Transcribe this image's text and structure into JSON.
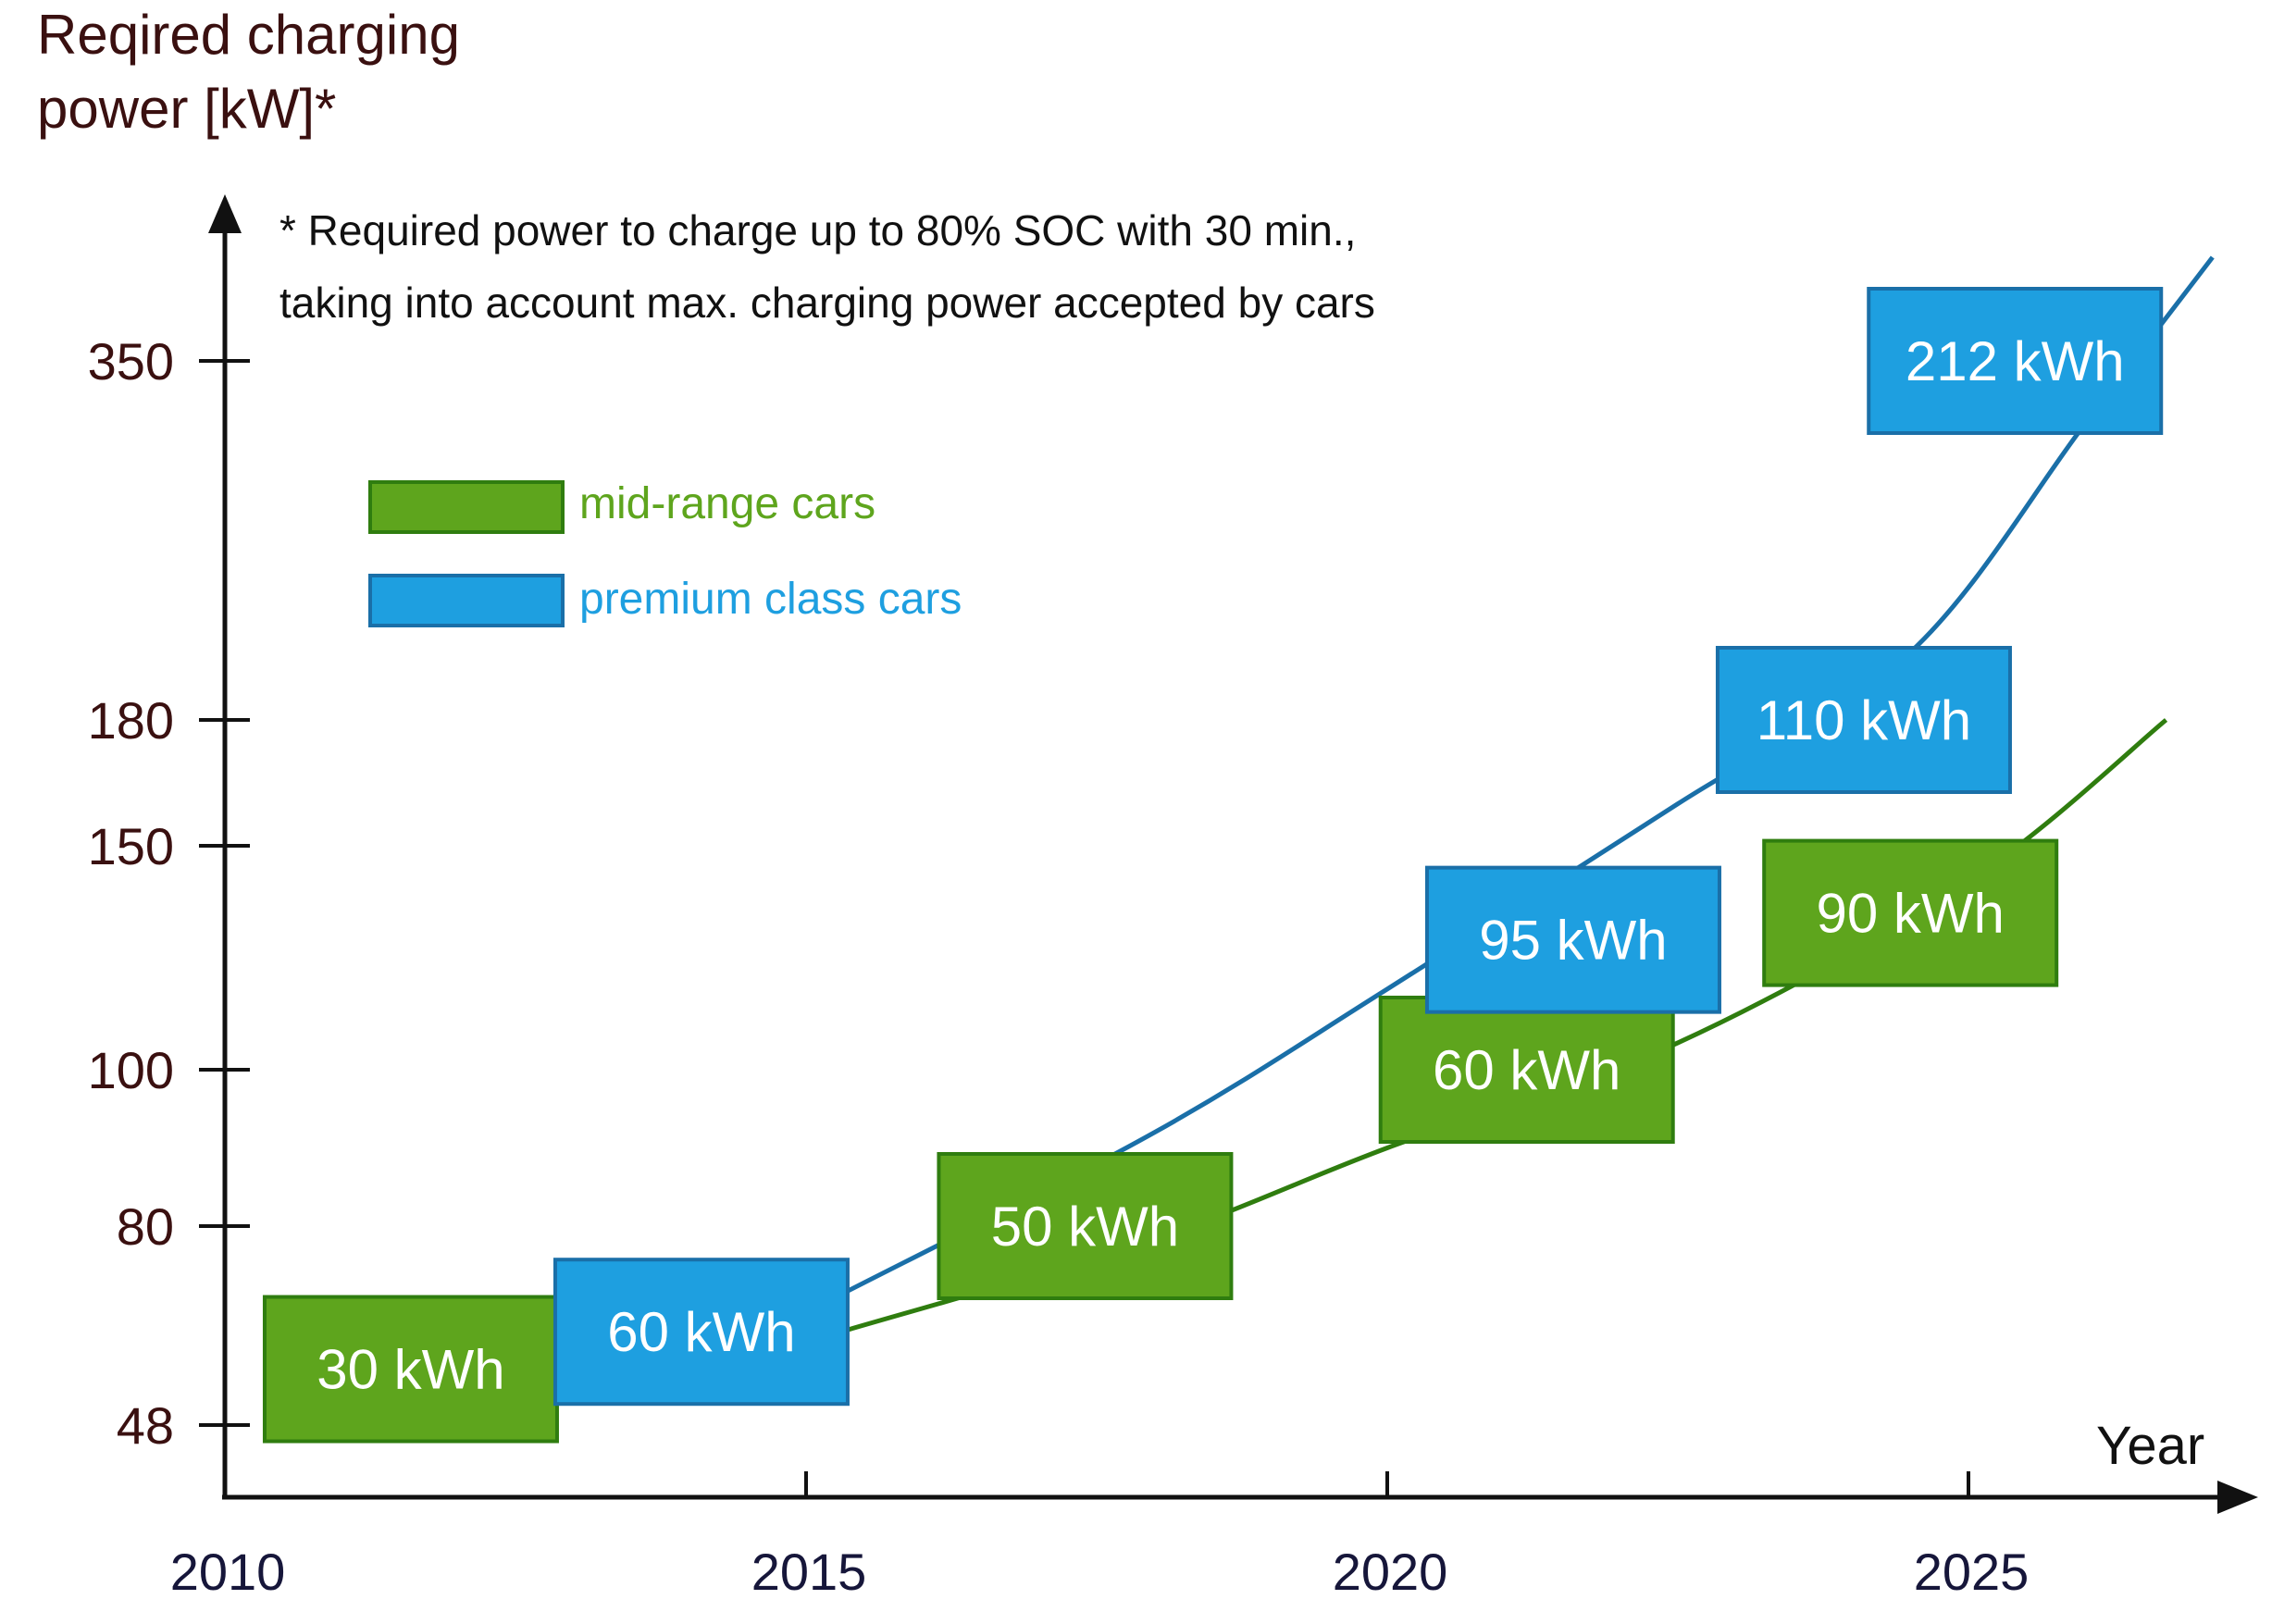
{
  "chart_data": {
    "type": "line",
    "title": "",
    "ylabel_lines": [
      "Reqired charging",
      "power [kW]*"
    ],
    "xlabel": "Year",
    "x_ticks": [
      2010,
      2015,
      2020,
      2025
    ],
    "y_ticks": [
      48,
      80,
      100,
      150,
      180,
      350
    ],
    "xlim": [
      2010,
      2027.2
    ],
    "footnote_lines": [
      "* Required power to charge up to 80% SOC with 30 min.,",
      "taking into account max. charging power accepted by cars"
    ],
    "legend": [
      {
        "name": "mid-range cars",
        "color": "#5ea51d"
      },
      {
        "name": "premium class cars",
        "color": "#1e9fe0"
      }
    ],
    "series": [
      {
        "name": "premium class cars",
        "line_color": "#1a6fa8",
        "x": [
          2015.3,
          2018.0,
          2020.0,
          2022.5,
          2024.5,
          2026.0,
          2027.1
        ],
        "values": [
          69,
          92,
          118,
          160,
          212,
          320,
          420
        ]
      },
      {
        "name": "mid-range cars",
        "line_color": "#2f7d0f",
        "x": [
          2015.3,
          2018.0,
          2020.0,
          2022.5,
          2025.0,
          2026.7
        ],
        "values": [
          63,
          78,
          90,
          106,
          142,
          180
        ]
      }
    ],
    "annotations": [
      {
        "text": "30 kWh",
        "series": "mid-range cars",
        "x": 2011.6,
        "y": 57
      },
      {
        "text": "60 kWh",
        "series": "premium class cars",
        "x": 2014.1,
        "y": 63
      },
      {
        "text": "50 kWh",
        "series": "mid-range cars",
        "x": 2017.4,
        "y": 80
      },
      {
        "text": "60 kWh",
        "series": "mid-range cars",
        "x": 2021.2,
        "y": 100
      },
      {
        "text": "95 kWh",
        "series": "premium class cars",
        "x": 2021.6,
        "y": 129
      },
      {
        "text": "110 kWh",
        "series": "premium class cars",
        "x": 2024.1,
        "y": 180
      },
      {
        "text": "90 kWh",
        "series": "mid-range cars",
        "x": 2024.5,
        "y": 135
      },
      {
        "text": "212 kWh",
        "series": "premium class cars",
        "x": 2025.4,
        "y": 350
      }
    ],
    "colors": {
      "axis": "#111111",
      "mid_fill": "#5ea51d",
      "premium_fill": "#1e9fe0",
      "box_border_mid": "#2f7d0f",
      "box_border_premium": "#1a6fa8"
    }
  }
}
